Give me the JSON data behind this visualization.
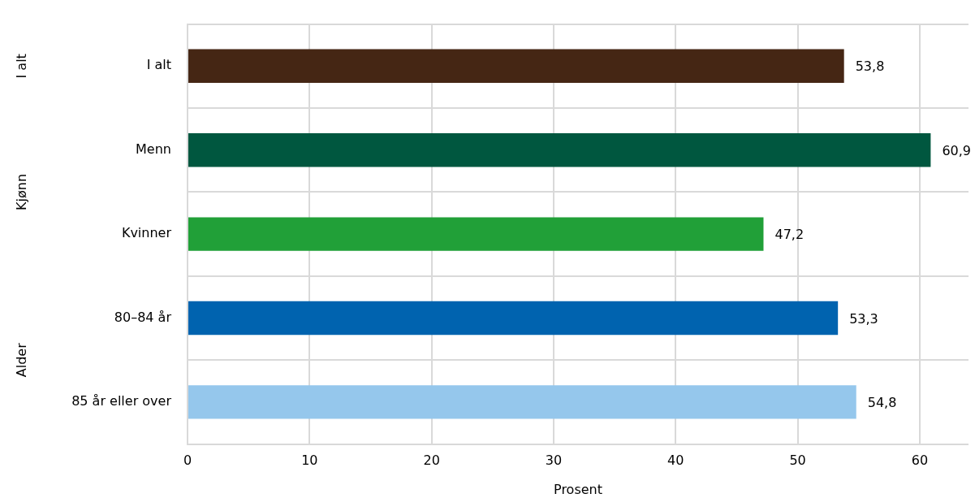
{
  "chart_data": {
    "type": "bar",
    "orientation": "horizontal",
    "xlabel": "Prosent",
    "categories": [
      "I alt",
      "Menn",
      "Kvinner",
      "80–84 år",
      "85 år eller over"
    ],
    "values": [
      53.8,
      60.9,
      47.2,
      53.3,
      54.8
    ],
    "colors": [
      "#452614",
      "#00573f",
      "#21a038",
      "#0063af",
      "#95c7ec"
    ],
    "value_labels": [
      "53,8",
      "60,9",
      "47,2",
      "53,3",
      "54,8"
    ],
    "annotations": [
      "I alt",
      "Kjønn",
      "Alder"
    ],
    "xlim": [
      0,
      64
    ],
    "xticks": [
      0,
      10,
      20,
      30,
      40,
      50,
      60
    ],
    "grid": true,
    "legend": false
  }
}
